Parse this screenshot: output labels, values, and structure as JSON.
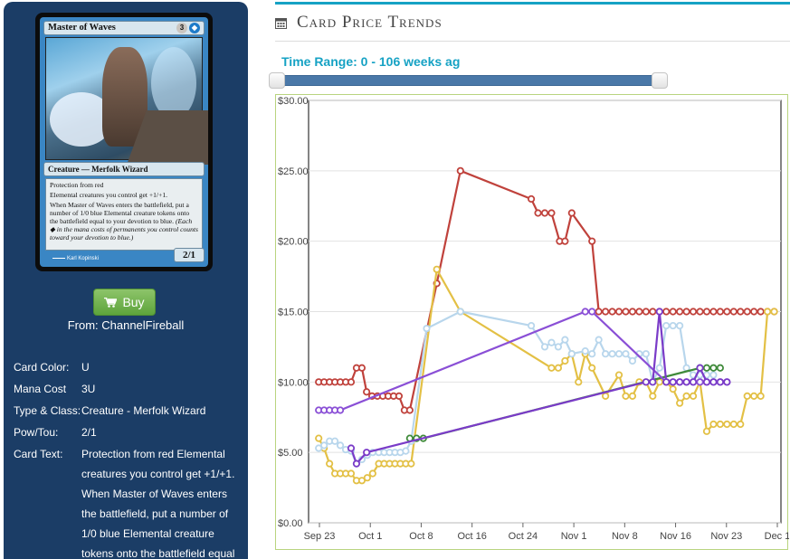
{
  "card": {
    "name": "Master of Waves",
    "mana_generic": "3",
    "mana_blue": "◆",
    "type_line": "Creature — Merfolk Wizard",
    "ability1": "Protection from red",
    "ability2": "Elemental creatures you control get +1/+1.",
    "ability3": "When Master of Waves enters the battlefield, put a number of 1/0 blue Elemental creature tokens onto the battlefield equal to your devotion to blue.",
    "reminder": "(Each ◆ in the mana costs of permanents you control counts toward your devotion to blue.)",
    "pt": "2/1",
    "artist": "Karl Kopinski"
  },
  "buy": {
    "label": "Buy",
    "from": "From: ChannelFireball"
  },
  "specs": [
    {
      "label": "Card Color:",
      "value": "U"
    },
    {
      "label": "Mana Cost",
      "value": "3U"
    },
    {
      "label": "Type & Class:",
      "value": "Creature - Merfolk Wizard"
    },
    {
      "label": "Pow/Tou:",
      "value": "2/1"
    },
    {
      "label": "Card Text:",
      "value": "Protection from red Elemental creatures you control get +1/+1. When Master of Waves enters the battlefield, put a number of 1/0 blue Elemental creature tokens onto the battlefield equal"
    }
  ],
  "section": {
    "title": "Card Price Trends",
    "icon": "calendar-icon"
  },
  "range": {
    "label": "Time Range: 0 - 106 weeks ag",
    "low": 0,
    "high": 106
  },
  "chart_data": {
    "type": "line",
    "xlabel": "",
    "ylabel": "",
    "x_ticks": [
      "Sep 23",
      "Oct 1",
      "Oct 8",
      "Oct 16",
      "Oct 24",
      "Nov 1",
      "Nov 8",
      "Nov 16",
      "Nov 23",
      "Dec 1"
    ],
    "y_ticks": [
      "$0.00",
      "$5.00",
      "$10.00",
      "$15.00",
      "$20.00",
      "$25.00",
      "$30.00"
    ],
    "ylim": [
      0,
      30
    ],
    "grid": true,
    "series": [
      {
        "color": "#c0423c",
        "points": [
          [
            21.5,
            10
          ],
          [
            22.3,
            10
          ],
          [
            23.1,
            10
          ],
          [
            23.9,
            10
          ],
          [
            24.7,
            10
          ],
          [
            25.5,
            10
          ],
          [
            26.3,
            10
          ],
          [
            27.1,
            11
          ],
          [
            27.9,
            11
          ],
          [
            28.6,
            9.3
          ],
          [
            29.4,
            9
          ],
          [
            30.2,
            9
          ],
          [
            31,
            9
          ],
          [
            31.8,
            9
          ],
          [
            32.6,
            9
          ],
          [
            33.4,
            9
          ],
          [
            34.2,
            8
          ],
          [
            35,
            8
          ],
          [
            39,
            17
          ],
          [
            42.5,
            25
          ],
          [
            53,
            23
          ],
          [
            54,
            22
          ],
          [
            55,
            22
          ],
          [
            56,
            22
          ],
          [
            57.2,
            20
          ],
          [
            58,
            20
          ],
          [
            59,
            22
          ],
          [
            62,
            20
          ],
          [
            63,
            15
          ],
          [
            64,
            15
          ],
          [
            65,
            15
          ],
          [
            66,
            15
          ],
          [
            67,
            15
          ],
          [
            68,
            15
          ],
          [
            69,
            15
          ],
          [
            70,
            15
          ],
          [
            71,
            15
          ],
          [
            72,
            15
          ],
          [
            73,
            15
          ],
          [
            74,
            15
          ],
          [
            75,
            15
          ],
          [
            76,
            15
          ],
          [
            77,
            15
          ],
          [
            78,
            15
          ],
          [
            79,
            15
          ],
          [
            80,
            15
          ],
          [
            81,
            15
          ],
          [
            82,
            15
          ],
          [
            83,
            15
          ],
          [
            84,
            15
          ],
          [
            85,
            15
          ],
          [
            86,
            15
          ],
          [
            87,
            15
          ],
          [
            88,
            15
          ],
          [
            89,
            15
          ]
        ]
      },
      {
        "color": "#e3c045",
        "points": [
          [
            21.5,
            6
          ],
          [
            22.3,
            5.3
          ],
          [
            23.1,
            4.2
          ],
          [
            23.9,
            3.5
          ],
          [
            24.7,
            3.5
          ],
          [
            25.5,
            3.5
          ],
          [
            26.3,
            3.5
          ],
          [
            27.1,
            3
          ],
          [
            27.9,
            3
          ],
          [
            28.7,
            3.2
          ],
          [
            29.5,
            3.5
          ],
          [
            30.4,
            4.2
          ],
          [
            31.2,
            4.2
          ],
          [
            32,
            4.2
          ],
          [
            32.8,
            4.2
          ],
          [
            33.6,
            4.2
          ],
          [
            34.4,
            4.2
          ],
          [
            35.2,
            4.2
          ],
          [
            39,
            18
          ],
          [
            42.5,
            15
          ],
          [
            56,
            11
          ],
          [
            57,
            11
          ],
          [
            58,
            11.5
          ],
          [
            59,
            12
          ],
          [
            60,
            10
          ],
          [
            61,
            12
          ],
          [
            62,
            11
          ],
          [
            64,
            9
          ],
          [
            66,
            10.5
          ],
          [
            67,
            9
          ],
          [
            68,
            9
          ],
          [
            69,
            10
          ],
          [
            70,
            10
          ],
          [
            71,
            9
          ],
          [
            72,
            10
          ],
          [
            73,
            10
          ],
          [
            74,
            9.5
          ],
          [
            75,
            8.5
          ],
          [
            76,
            9
          ],
          [
            77,
            9
          ],
          [
            78,
            10
          ],
          [
            79,
            6.5
          ],
          [
            80,
            7
          ],
          [
            81,
            7
          ],
          [
            82,
            7
          ],
          [
            83,
            7
          ],
          [
            84,
            7
          ],
          [
            85,
            9
          ],
          [
            86,
            9
          ],
          [
            87,
            9
          ],
          [
            88,
            15
          ],
          [
            89,
            15
          ]
        ]
      },
      {
        "color": "#b8d6ec",
        "points": [
          [
            21.5,
            5.3
          ],
          [
            22.3,
            5.5
          ],
          [
            23.1,
            5.8
          ],
          [
            23.9,
            5.8
          ],
          [
            24.7,
            5.5
          ],
          [
            25.5,
            5.2
          ],
          [
            26.3,
            5.1
          ],
          [
            27.1,
            4.2
          ],
          [
            27.9,
            4.5
          ],
          [
            28.7,
            4.8
          ],
          [
            29.5,
            5
          ],
          [
            30.4,
            5
          ],
          [
            31.2,
            5
          ],
          [
            32,
            5
          ],
          [
            32.8,
            5
          ],
          [
            33.6,
            5
          ],
          [
            34.4,
            5.1
          ],
          [
            35.2,
            5.8
          ],
          [
            37.5,
            13.8
          ],
          [
            42.5,
            15
          ],
          [
            53,
            14
          ],
          [
            55,
            12.5
          ],
          [
            56,
            12.8
          ],
          [
            57,
            12.5
          ],
          [
            58,
            13
          ],
          [
            59,
            12
          ],
          [
            61,
            12.2
          ],
          [
            62,
            12
          ],
          [
            63,
            13
          ],
          [
            64,
            12
          ],
          [
            65,
            12
          ],
          [
            66,
            12
          ],
          [
            67,
            12
          ],
          [
            68,
            11.5
          ],
          [
            69,
            12
          ],
          [
            70,
            12
          ],
          [
            71,
            10
          ],
          [
            72,
            11
          ],
          [
            73,
            14
          ],
          [
            74,
            14
          ],
          [
            75,
            14
          ],
          [
            76,
            11
          ],
          [
            77,
            10.5
          ],
          [
            78,
            10.5
          ],
          [
            79,
            10.5
          ],
          [
            80,
            10.5
          ]
        ]
      },
      {
        "color": "#3f8a3a",
        "points": [
          [
            35,
            6
          ],
          [
            36,
            6
          ],
          [
            37,
            6
          ],
          [
            78,
            11
          ],
          [
            79,
            11
          ],
          [
            80,
            11
          ],
          [
            81,
            11
          ]
        ]
      },
      {
        "color": "#8a4fd6",
        "points": [
          [
            21.5,
            8
          ],
          [
            22.3,
            8
          ],
          [
            23.1,
            8
          ],
          [
            23.9,
            8
          ],
          [
            24.7,
            8
          ],
          [
            61,
            15
          ],
          [
            62,
            15
          ],
          [
            73,
            10
          ],
          [
            74,
            10
          ],
          [
            75,
            10
          ],
          [
            76,
            10
          ],
          [
            77,
            10
          ],
          [
            78,
            10
          ],
          [
            79,
            10
          ],
          [
            80,
            10
          ],
          [
            81,
            10
          ],
          [
            82,
            10
          ]
        ]
      },
      {
        "color": "#7a3bc8",
        "points": [
          [
            26.3,
            5.3
          ],
          [
            27.1,
            4.2
          ],
          [
            28.6,
            5
          ],
          [
            70,
            10
          ],
          [
            71,
            10
          ],
          [
            72,
            15
          ],
          [
            73,
            10
          ],
          [
            74,
            10
          ],
          [
            75,
            10
          ],
          [
            76,
            10
          ],
          [
            77,
            10
          ],
          [
            78,
            11
          ],
          [
            79,
            10
          ],
          [
            80,
            10
          ],
          [
            81,
            10
          ],
          [
            82,
            10
          ]
        ]
      }
    ]
  }
}
